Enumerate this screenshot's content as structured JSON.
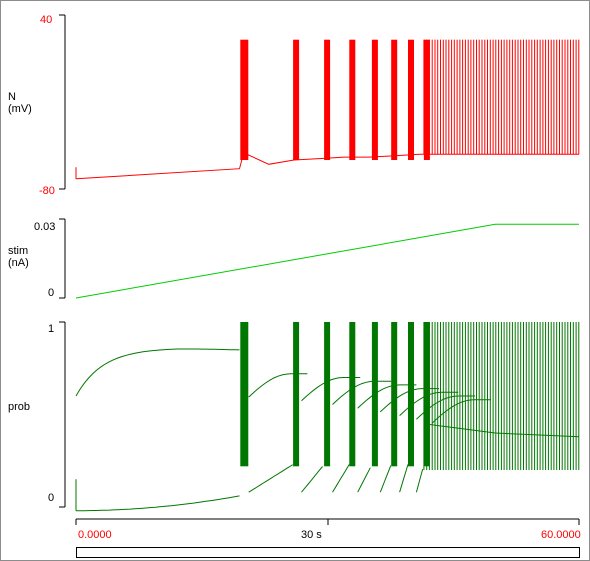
{
  "colors": {
    "red": "#ff0000",
    "green_light": "#00cc00",
    "green_dark": "#007700",
    "axis": "#000000"
  },
  "panels": {
    "voltage": {
      "label_line1": "N",
      "label_line2": "(mV)",
      "y_top": "40",
      "y_bottom": "-80",
      "tick_color": "#ff0000"
    },
    "stim": {
      "label_line1": "stim",
      "label_line2": "(nA)",
      "y_top": "0.03",
      "y_bottom": "0"
    },
    "prob": {
      "label": "prob",
      "y_top": "1",
      "y_bottom": "0"
    }
  },
  "time_axis": {
    "start": "0.0000",
    "mid": "30 s",
    "end": "60.0000"
  },
  "chart_data": [
    {
      "type": "line",
      "title": "",
      "ylabel": "N (mV)",
      "ylim": [
        -80,
        40
      ],
      "xlim": [
        0,
        60
      ],
      "series": [
        {
          "x": [
            0,
            19.5,
            20,
            23,
            26,
            29,
            32,
            35,
            38,
            41,
            60
          ],
          "values": [
            -73,
            -66,
            -55,
            -63,
            -60,
            -59,
            -58,
            -58,
            -57,
            -56,
            -56
          ]
        }
      ],
      "spike_times": [
        19.6,
        25.9,
        29.6,
        32.6,
        35.3,
        37.6,
        39.6,
        41.5
      ],
      "spike_peak": 23,
      "tonic_firing_start": 41.5
    },
    {
      "type": "line",
      "title": "",
      "ylabel": "stim (nA)",
      "ylim": [
        0,
        0.03
      ],
      "xlim": [
        0,
        60
      ],
      "series": [
        {
          "x": [
            0,
            50,
            60
          ],
          "values": [
            0.0,
            0.028,
            0.028
          ]
        }
      ]
    },
    {
      "type": "line",
      "title": "",
      "ylabel": "prob",
      "ylim": [
        0,
        1
      ],
      "xlim": [
        0,
        60
      ],
      "series": [
        {
          "x": [
            0,
            5,
            12,
            19.5
          ],
          "values": [
            0.6,
            0.82,
            0.86,
            0.84
          ]
        },
        {
          "x": [
            0,
            19.5,
            20,
            25,
            30,
            40,
            60
          ],
          "values": [
            -0.02,
            0.02,
            0.25,
            0.6,
            0.65,
            0.5,
            0.4
          ]
        }
      ]
    }
  ]
}
